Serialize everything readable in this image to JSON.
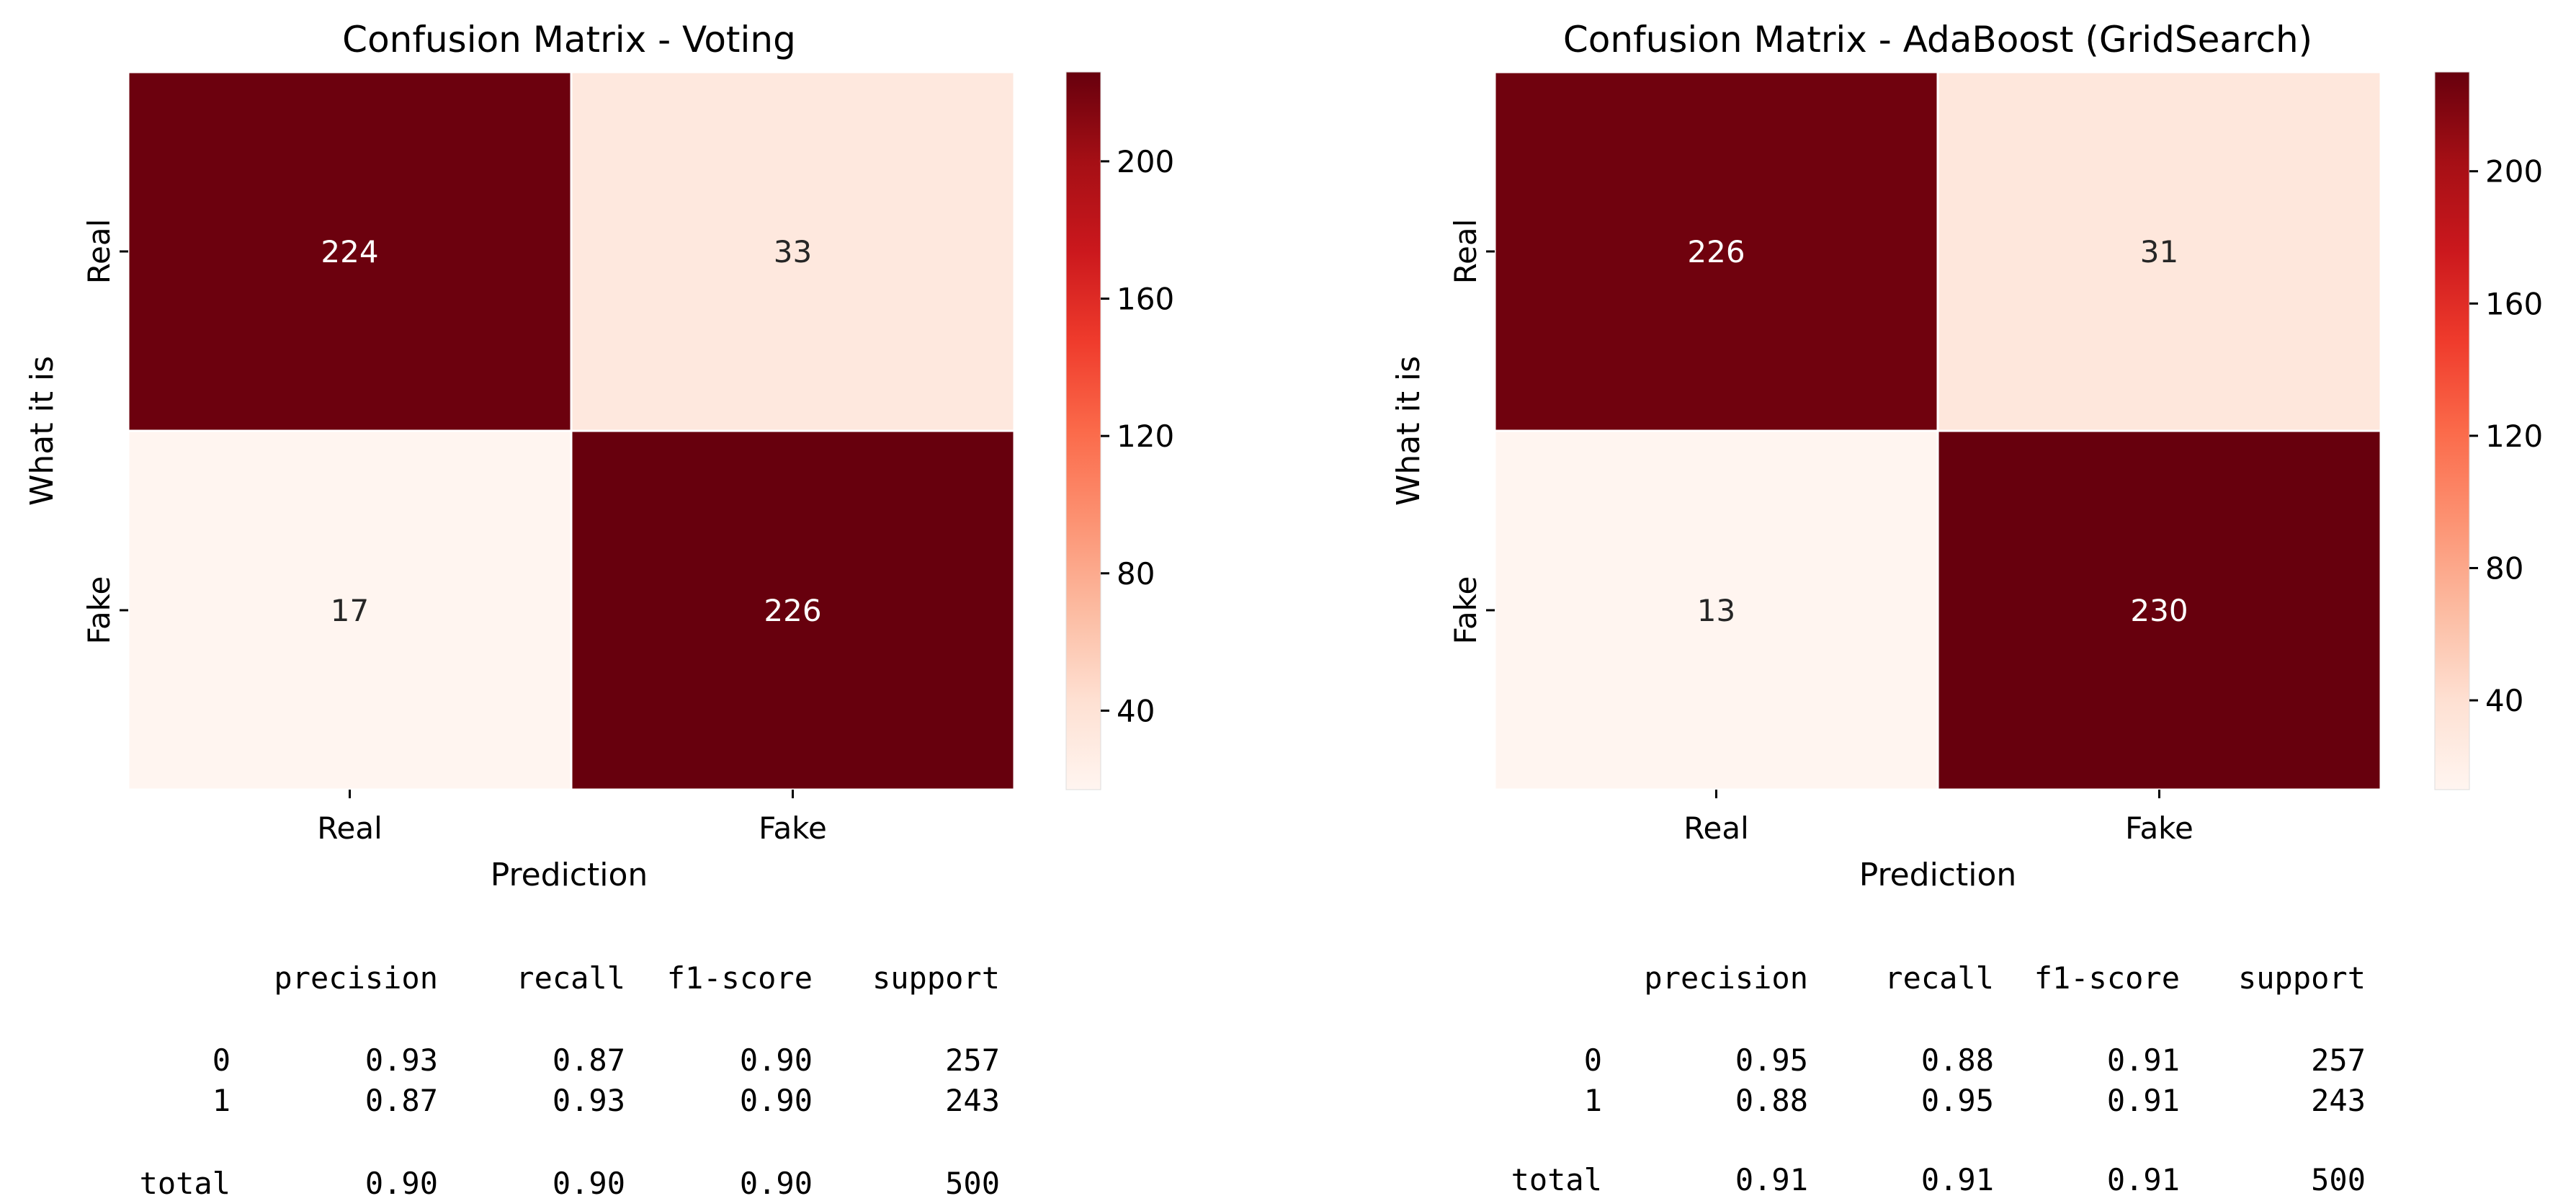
{
  "chart_data": [
    {
      "type": "heatmap",
      "title": "Confusion Matrix - Voting",
      "xlabel": "Prediction",
      "ylabel": "What it is",
      "x_categories": [
        "Real",
        "Fake"
      ],
      "y_categories": [
        "Real",
        "Fake"
      ],
      "values": [
        [
          224,
          33
        ],
        [
          17,
          226
        ]
      ],
      "colormap": "Reds",
      "colorbar": {
        "ticks": [
          40,
          80,
          120,
          160,
          200
        ],
        "range": [
          17,
          226
        ]
      }
    },
    {
      "type": "heatmap",
      "title": "Confusion Matrix - AdaBoost (GridSearch)",
      "xlabel": "Prediction",
      "ylabel": "What it is",
      "x_categories": [
        "Real",
        "Fake"
      ],
      "y_categories": [
        "Real",
        "Fake"
      ],
      "values": [
        [
          226,
          31
        ],
        [
          13,
          230
        ]
      ],
      "colormap": "Reds",
      "colorbar": {
        "ticks": [
          40,
          80,
          120,
          160,
          200
        ],
        "range": [
          13,
          230
        ]
      }
    }
  ],
  "reports": [
    {
      "headers": [
        "precision",
        "recall",
        "f1-score",
        "support"
      ],
      "rows": [
        {
          "label": "0",
          "values": [
            "0.93",
            "0.87",
            "0.90",
            "257"
          ]
        },
        {
          "label": "1",
          "values": [
            "0.87",
            "0.93",
            "0.90",
            "243"
          ]
        },
        {
          "label": "total",
          "values": [
            "0.90",
            "0.90",
            "0.90",
            "500"
          ]
        }
      ]
    },
    {
      "headers": [
        "precision",
        "recall",
        "f1-score",
        "support"
      ],
      "rows": [
        {
          "label": "0",
          "values": [
            "0.95",
            "0.88",
            "0.91",
            "257"
          ]
        },
        {
          "label": "1",
          "values": [
            "0.88",
            "0.95",
            "0.91",
            "243"
          ]
        },
        {
          "label": "total",
          "values": [
            "0.91",
            "0.91",
            "0.91",
            "500"
          ]
        }
      ]
    }
  ]
}
